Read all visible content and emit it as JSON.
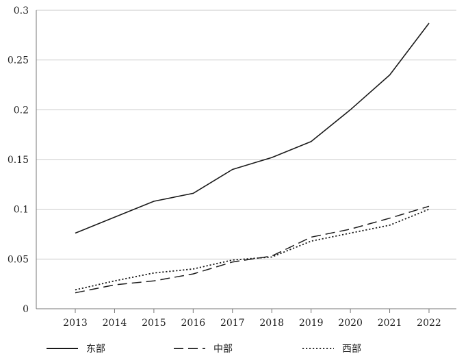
{
  "chart_data": {
    "type": "line",
    "title": "",
    "xlabel": "",
    "ylabel": "",
    "categories": [
      "2013",
      "2014",
      "2015",
      "2016",
      "2017",
      "2018",
      "2019",
      "2020",
      "2021",
      "2022"
    ],
    "ylim": [
      0,
      0.3
    ],
    "y_ticks": [
      "0",
      "0.05",
      "0.1",
      "0.15",
      "0.2",
      "0.25",
      "0.3"
    ],
    "grid": "horizontal",
    "legend_position": "bottom",
    "series": [
      {
        "name": "东部",
        "line_style": "solid",
        "values": [
          0.076,
          0.092,
          0.108,
          0.116,
          0.14,
          0.152,
          0.168,
          0.2,
          0.235,
          0.287
        ]
      },
      {
        "name": "中部",
        "line_style": "dashed",
        "values": [
          0.016,
          0.024,
          0.028,
          0.035,
          0.047,
          0.053,
          0.072,
          0.08,
          0.091,
          0.103
        ]
      },
      {
        "name": "西部",
        "line_style": "dotted",
        "values": [
          0.019,
          0.028,
          0.036,
          0.04,
          0.049,
          0.052,
          0.068,
          0.076,
          0.084,
          0.1
        ]
      }
    ]
  }
}
